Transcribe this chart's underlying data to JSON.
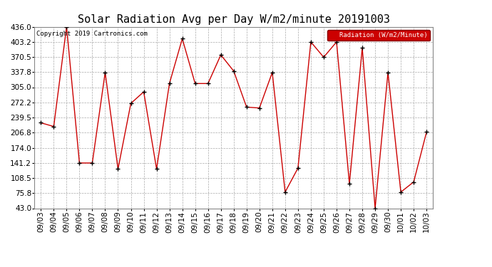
{
  "title": "Solar Radiation Avg per Day W/m2/minute 20191003",
  "copyright": "Copyright 2019 Cartronics.com",
  "legend_label": "Radiation (W/m2/Minute)",
  "dates": [
    "09/03",
    "09/04",
    "09/05",
    "09/06",
    "09/07",
    "09/08",
    "09/09",
    "09/10",
    "09/11",
    "09/12",
    "09/13",
    "09/14",
    "09/15",
    "09/16",
    "09/17",
    "09/18",
    "09/19",
    "09/20",
    "09/21",
    "09/22",
    "09/23",
    "09/24",
    "09/25",
    "09/26",
    "09/27",
    "09/28",
    "09/29",
    "09/30",
    "10/01",
    "10/02",
    "10/03"
  ],
  "values": [
    228,
    220,
    436,
    141,
    141,
    337,
    128,
    270,
    295,
    128,
    313,
    410,
    313,
    313,
    375,
    340,
    262,
    260,
    337,
    78,
    130,
    403,
    370,
    403,
    96,
    390,
    43,
    337,
    78,
    100,
    208
  ],
  "line_color": "#cc0000",
  "marker_color": "#000000",
  "legend_bg": "#cc0000",
  "legend_text_color": "#ffffff",
  "ylim_min": 43.0,
  "ylim_max": 436.0,
  "yticks": [
    43.0,
    75.8,
    108.5,
    141.2,
    174.0,
    206.8,
    239.5,
    272.2,
    305.0,
    337.8,
    370.5,
    403.2,
    436.0
  ],
  "background_color": "#ffffff",
  "grid_color": "#aaaaaa",
  "title_fontsize": 11,
  "tick_fontsize": 7.5,
  "copyright_fontsize": 6.5
}
